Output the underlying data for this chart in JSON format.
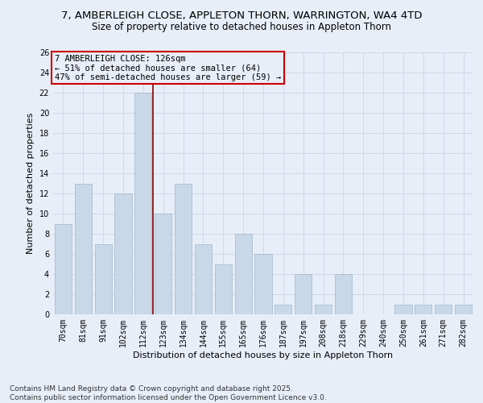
{
  "title_line1": "7, AMBERLEIGH CLOSE, APPLETON THORN, WARRINGTON, WA4 4TD",
  "title_line2": "Size of property relative to detached houses in Appleton Thorn",
  "xlabel": "Distribution of detached houses by size in Appleton Thorn",
  "ylabel": "Number of detached properties",
  "categories": [
    "70sqm",
    "81sqm",
    "91sqm",
    "102sqm",
    "112sqm",
    "123sqm",
    "134sqm",
    "144sqm",
    "155sqm",
    "165sqm",
    "176sqm",
    "187sqm",
    "197sqm",
    "208sqm",
    "218sqm",
    "229sqm",
    "240sqm",
    "250sqm",
    "261sqm",
    "271sqm",
    "282sqm"
  ],
  "values": [
    9,
    13,
    7,
    12,
    22,
    10,
    13,
    7,
    5,
    8,
    6,
    1,
    4,
    1,
    4,
    0,
    0,
    1,
    1,
    1,
    1
  ],
  "bar_color": "#c8d8e8",
  "bar_edge_color": "#a0b8cc",
  "grid_color": "#d0d8e8",
  "bg_color": "#e8eef8",
  "annotation_text": "7 AMBERLEIGH CLOSE: 126sqm\n← 51% of detached houses are smaller (64)\n47% of semi-detached houses are larger (59) →",
  "vline_index": 5,
  "vline_color": "#8b0000",
  "box_edge_color": "#cc0000",
  "ylim": [
    0,
    26
  ],
  "yticks": [
    0,
    2,
    4,
    6,
    8,
    10,
    12,
    14,
    16,
    18,
    20,
    22,
    24,
    26
  ],
  "footer_line1": "Contains HM Land Registry data © Crown copyright and database right 2025.",
  "footer_line2": "Contains public sector information licensed under the Open Government Licence v3.0.",
  "title_fontsize": 9.5,
  "subtitle_fontsize": 8.5,
  "tick_fontsize": 7,
  "ylabel_fontsize": 8,
  "xlabel_fontsize": 8,
  "annotation_fontsize": 7.5,
  "footer_fontsize": 6.5
}
